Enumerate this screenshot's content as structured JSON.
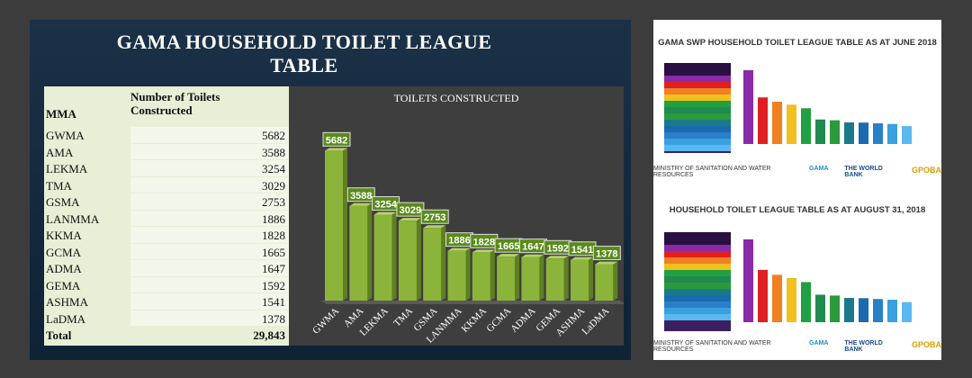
{
  "slide": {
    "title_line1": "GAMA HOUSEHOLD TOILET LEAGUE",
    "title_line2": "TABLE"
  },
  "table": {
    "header_noc": "Number of Toilets Constructed",
    "header_noc_1": "Number of Toilets",
    "header_noc_2": "Constructed",
    "header_mma": "MMA",
    "rows": [
      {
        "mma": "GWMA",
        "value": "5682"
      },
      {
        "mma": "AMA",
        "value": "3588"
      },
      {
        "mma": "LEKMA",
        "value": "3254"
      },
      {
        "mma": "TMA",
        "value": "3029"
      },
      {
        "mma": "GSMA",
        "value": "2753"
      },
      {
        "mma": "LANMMA",
        "value": "1886"
      },
      {
        "mma": "KKMA",
        "value": "1828"
      },
      {
        "mma": "GCMA",
        "value": "1665"
      },
      {
        "mma": "ADMA",
        "value": "1647"
      },
      {
        "mma": "GEMA",
        "value": "1592"
      },
      {
        "mma": "ASHMA",
        "value": "1541"
      },
      {
        "mma": "LaDMA",
        "value": "1378"
      }
    ],
    "total_label": "Total",
    "total_value": "29,843"
  },
  "chart_data": {
    "type": "bar",
    "title": "TOILETS CONSTRUCTED",
    "categories": [
      "GWMA",
      "AMA",
      "LEKMA",
      "TMA",
      "GSMA",
      "LANMMA",
      "KKMA",
      "GCMA",
      "ADMA",
      "GEMA",
      "ASHMA",
      "LaDMA"
    ],
    "values": [
      5682,
      3588,
      3254,
      3029,
      2753,
      1886,
      1828,
      1665,
      1647,
      1592,
      1541,
      1378
    ],
    "ylim": [
      0,
      6000
    ],
    "grid": false,
    "legend": "none",
    "bar_color": "#8cb43a",
    "label_color": "#5a8a1a"
  },
  "right_panel": {
    "title_top": "GAMA SWP HOUSEHOLD TOILET LEAGUE TABLE AS AT JUNE 2018",
    "title_bottom": "HOUSEHOLD TOILET LEAGUE TABLE AS AT AUGUST 31, 2018",
    "logo_ministry": "MINISTRY OF SANITATION AND WATER RESOURCES",
    "logo_gama": "GAMA",
    "logo_worldbank": "THE WORLD BANK",
    "logo_gpoba": "GPOBA",
    "mini_bar_colors": [
      "#8a2aa8",
      "#e02020",
      "#f08020",
      "#f0c020",
      "#20a040",
      "#208a50",
      "#2a9a3a",
      "#1a7a8a",
      "#1a6ab0",
      "#2a80c8",
      "#3aa0e0",
      "#5ab8f0"
    ]
  }
}
